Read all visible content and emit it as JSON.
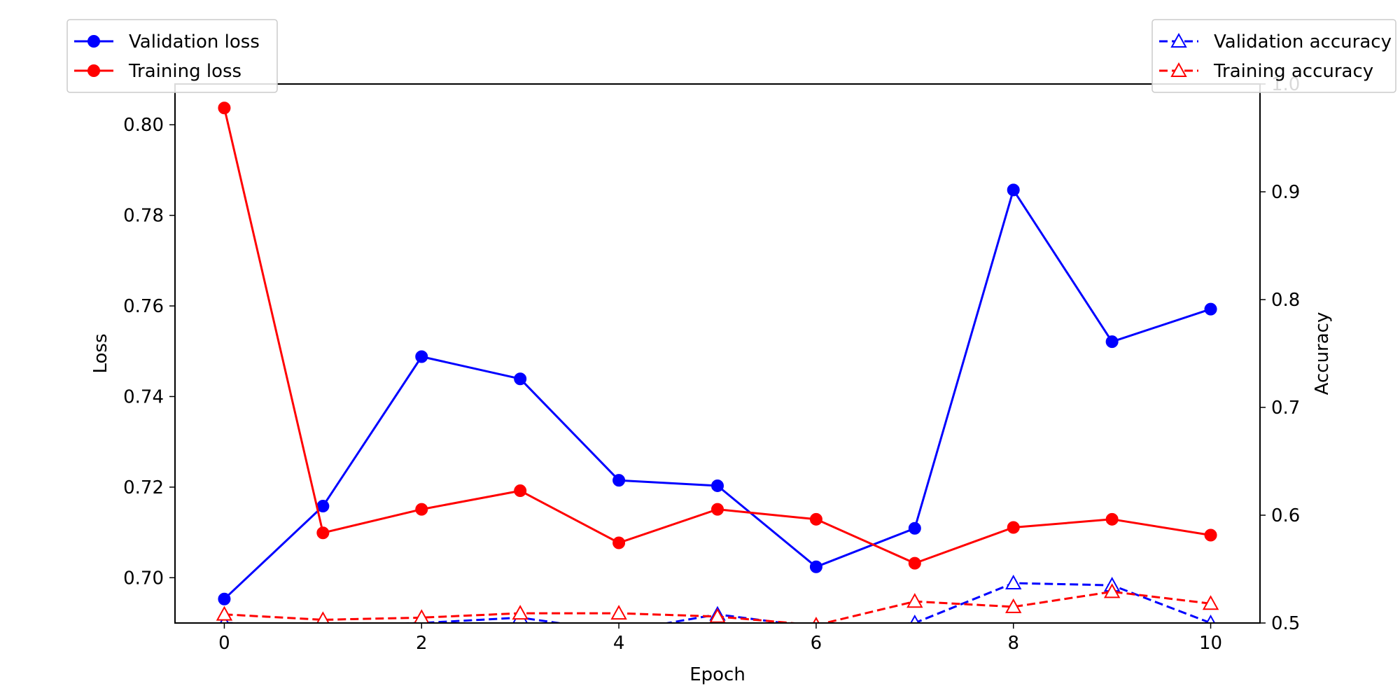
{
  "chart_data": {
    "type": "line",
    "xlabel": "Epoch",
    "ylabel_left": "Loss",
    "ylabel_right": "Accuracy",
    "xlim": [
      -0.5,
      10.5
    ],
    "ylim_left": [
      0.69,
      0.809
    ],
    "ylim_right": [
      0.5,
      1.0
    ],
    "x_ticks": [
      0,
      2,
      4,
      6,
      8,
      10
    ],
    "y_ticks_left": [
      0.7,
      0.72,
      0.74,
      0.76,
      0.78,
      0.8
    ],
    "y_ticks_right": [
      0.5,
      0.6,
      0.7,
      0.8,
      0.9,
      1.0
    ],
    "x": [
      0,
      1,
      2,
      3,
      4,
      5,
      6,
      7,
      8,
      9,
      10
    ],
    "grid": false,
    "colors": {
      "blue": "#0000ff",
      "red": "#ff0000"
    },
    "series": [
      {
        "name": "Validation loss",
        "axis": "left",
        "color": "#0000ff",
        "style": "solid",
        "marker": "circle",
        "values": [
          0.6953,
          0.7158,
          0.7488,
          0.7439,
          0.7215,
          0.7203,
          0.7024,
          0.7109,
          0.7856,
          0.7521,
          0.7593
        ]
      },
      {
        "name": "Training loss",
        "axis": "left",
        "color": "#ff0000",
        "style": "solid",
        "marker": "circle",
        "values": [
          0.8037,
          0.7099,
          0.7151,
          0.7192,
          0.7077,
          0.7151,
          0.7129,
          0.7032,
          0.7111,
          0.7129,
          0.7094
        ]
      },
      {
        "name": "Validation accuracy",
        "axis": "right",
        "color": "#0000ff",
        "style": "dashed",
        "marker": "triangle",
        "values": [
          0.5,
          0.498,
          0.5,
          0.505,
          0.492,
          0.508,
          0.496,
          0.5,
          0.537,
          0.535,
          0.5
        ]
      },
      {
        "name": "Training accuracy",
        "axis": "right",
        "color": "#ff0000",
        "style": "dashed",
        "marker": "triangle",
        "values": [
          0.508,
          0.503,
          0.505,
          0.509,
          0.509,
          0.506,
          0.498,
          0.52,
          0.515,
          0.529,
          0.518
        ]
      }
    ],
    "legends": [
      {
        "placement": "top-left",
        "items": [
          "Validation loss",
          "Training loss"
        ]
      },
      {
        "placement": "top-right",
        "items": [
          "Validation accuracy",
          "Training accuracy"
        ]
      }
    ]
  }
}
